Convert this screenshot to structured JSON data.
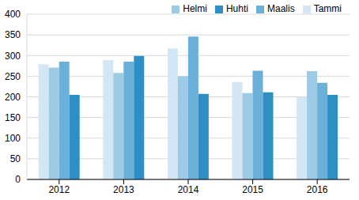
{
  "chart_data": {
    "type": "bar",
    "categories": [
      "2012",
      "2013",
      "2014",
      "2015",
      "2016"
    ],
    "series": [
      {
        "name": "Tammi",
        "color": "#d3e6f4",
        "values": [
          279,
          289,
          317,
          236,
          199
        ]
      },
      {
        "name": "Helmi",
        "color": "#9dcbe6",
        "values": [
          271,
          258,
          250,
          209,
          262
        ]
      },
      {
        "name": "Maalis",
        "color": "#6bb0d9",
        "values": [
          285,
          285,
          346,
          263,
          234
        ]
      },
      {
        "name": "Huhti",
        "color": "#2e8fc4",
        "values": [
          205,
          299,
          207,
          211,
          205
        ]
      }
    ],
    "ylim": [
      0,
      400
    ],
    "yticks": [
      0,
      50,
      100,
      150,
      200,
      250,
      300,
      350,
      400
    ],
    "grid": true,
    "legend": "top right"
  }
}
